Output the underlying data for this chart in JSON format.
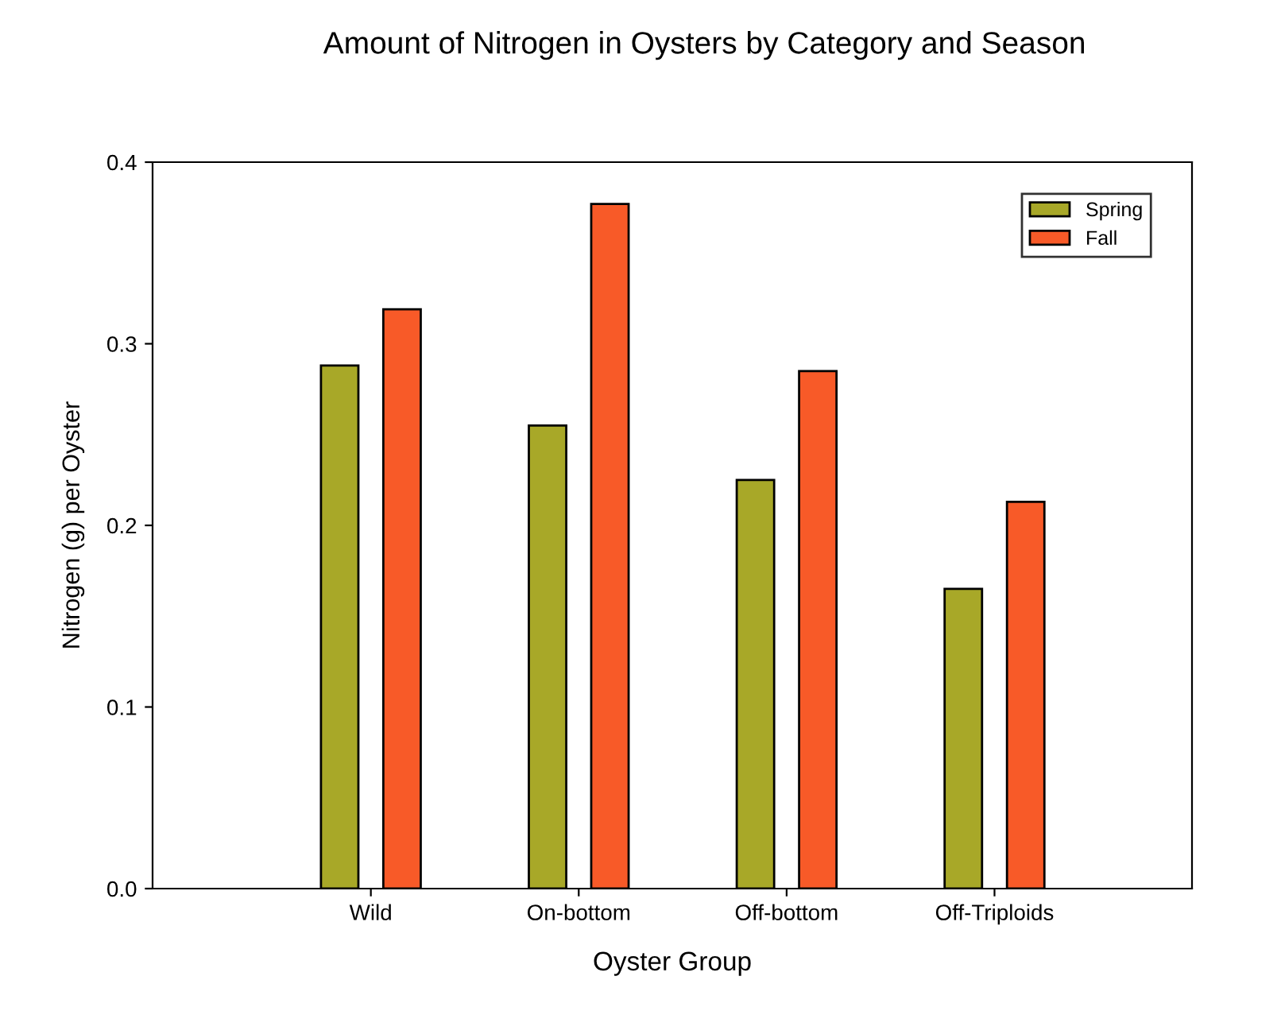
{
  "chart_data": {
    "type": "bar",
    "title": "Amount of Nitrogen in Oysters by Category and Season",
    "xlabel": "Oyster Group",
    "ylabel": "Nitrogen (g) per Oyster",
    "categories": [
      "Wild",
      "On-bottom",
      "Off-bottom",
      "Off-Triploids"
    ],
    "series": [
      {
        "name": "Spring",
        "color": "#a8a828",
        "values": [
          0.288,
          0.255,
          0.225,
          0.165
        ]
      },
      {
        "name": "Fall",
        "color": "#f85a28",
        "values": [
          0.319,
          0.377,
          0.285,
          0.213
        ]
      }
    ],
    "ylim": [
      0,
      0.4
    ],
    "yticks": [
      {
        "value": 0,
        "label": "0.0"
      },
      0.1,
      0.2,
      0.3,
      0.4
    ],
    "grid": false,
    "legend": "top right"
  }
}
